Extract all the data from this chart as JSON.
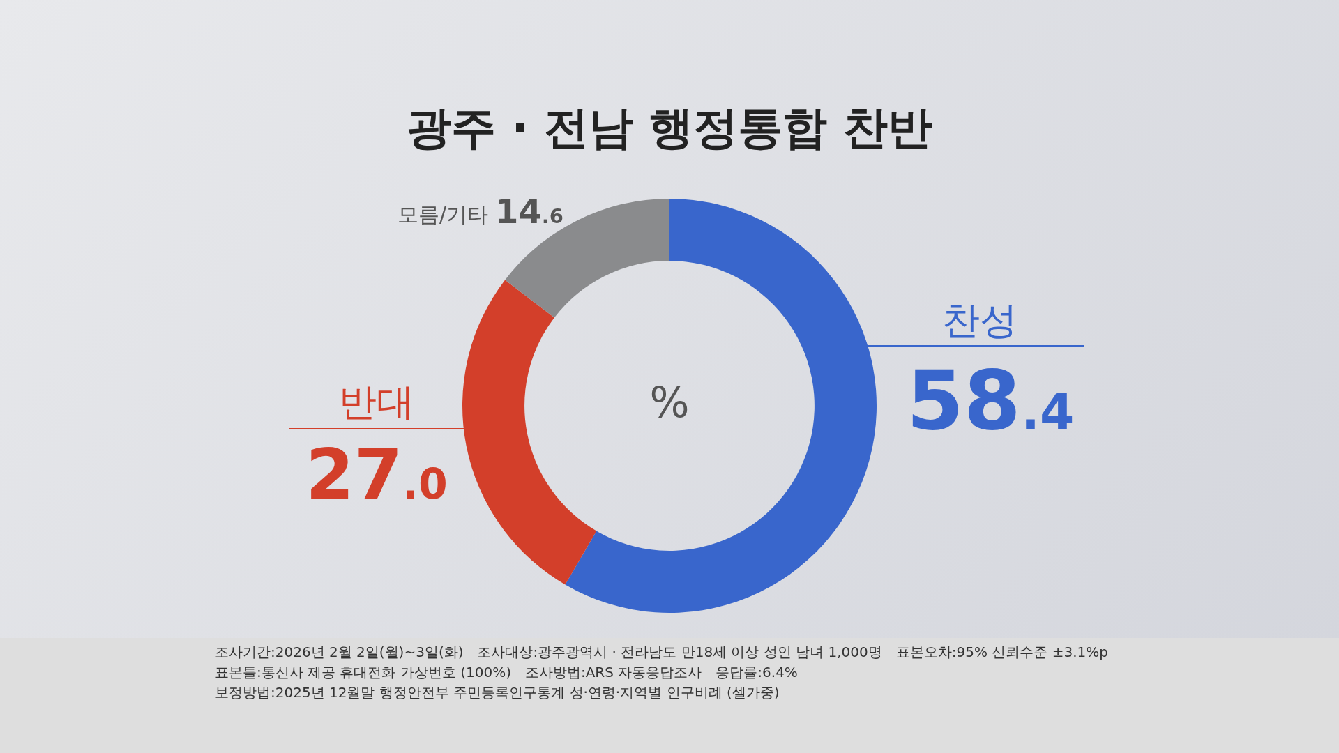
{
  "chart_data": {
    "type": "donut",
    "title": "광주 · 전남 행정통합 찬반",
    "categories": [
      "찬성",
      "반대",
      "모름/기타"
    ],
    "values": [
      58.4,
      27.0,
      14.6
    ],
    "colors": [
      "#3966cc",
      "#d33f2a",
      "#8a8b8d"
    ],
    "value_labels": [
      "58.4",
      "27.0",
      "14.6"
    ],
    "legend": false,
    "annotations": [
      "%",
      "조사기간:2026년 2월 2일(월)~3일(화)　조사대상:광주광역시 · 전라남도 만18세 이상 성인 남녀 1,000명　표본오차:95% 신뢰수준 ±3.1%p",
      "표본틀:통신사 제공 휴대전화 가상번호 (100%)　조사방법:ARS 자동응답조사　응답률:6.4%",
      "보정방법:2025년 12월말 행정안전부 주민등록인구통계 성·연령·지역별 인구비례 (셀가중)"
    ]
  }
}
